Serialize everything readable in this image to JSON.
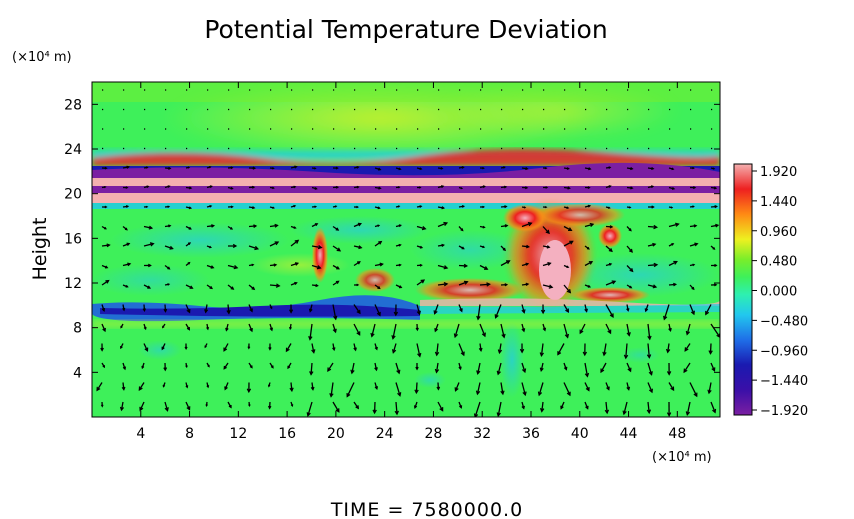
{
  "chart_data": {
    "type": "heatmap",
    "title": "Potential Temperature Deviation",
    "xlabel": "",
    "x_unit": "(×10⁴ m)",
    "ylabel": "Height",
    "y_unit": "(×10⁴ m)",
    "xlim": [
      0,
      51.5
    ],
    "ylim": [
      0,
      30
    ],
    "x_ticks": [
      4,
      8,
      12,
      16,
      20,
      24,
      28,
      32,
      36,
      40,
      44,
      48
    ],
    "y_ticks": [
      4,
      8,
      12,
      16,
      20,
      24,
      28
    ],
    "x_tick_labels": [
      "4",
      "8",
      "12",
      "16",
      "20",
      "24",
      "28",
      "32",
      "36",
      "40",
      "44",
      "48"
    ],
    "y_tick_labels": [
      "4",
      "8",
      "12",
      "16",
      "20",
      "24",
      "28"
    ],
    "colorbar": {
      "min": -1.92,
      "max": 1.92,
      "tick_labels": [
        "1.920",
        "1.440",
        "0.960",
        "0.480",
        "0.000",
        "−0.480",
        "−0.960",
        "−1.440",
        "−1.920"
      ],
      "colors": [
        "#7b1fa2",
        "#1a1aa8",
        "#1f5fe0",
        "#22c8ee",
        "#2ef08a",
        "#66ee2a",
        "#eef020",
        "#ff8a14",
        "#ee2020",
        "#f4a6a6"
      ]
    },
    "overlay": "wind vector arrows",
    "grid": false,
    "time_label": "TIME  =  7580000.0"
  }
}
